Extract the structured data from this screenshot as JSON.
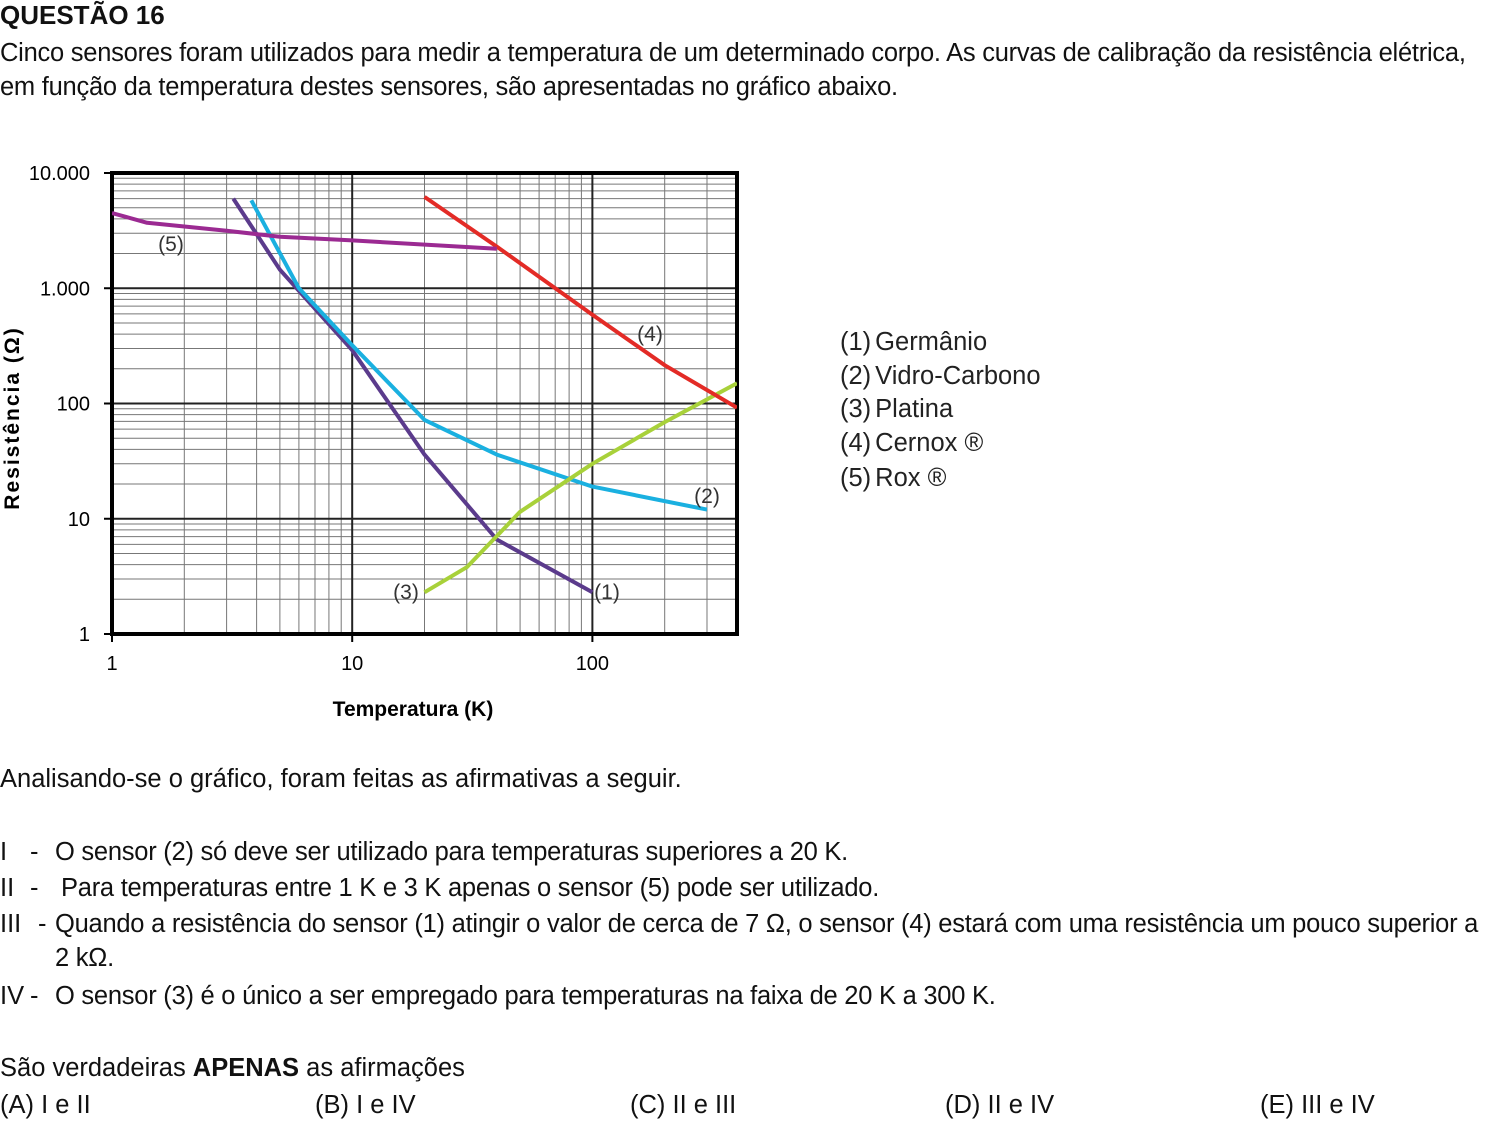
{
  "header": {
    "title": "QUESTÃO 16"
  },
  "intro": "Cinco sensores foram utilizados para medir a temperatura de um determinado corpo. As curvas de calibração da resistência elétrica, em função da temperatura destes sensores, são apresentadas no gráfico abaixo.",
  "chart_data": {
    "type": "line",
    "xlabel": "Temperatura (K)",
    "ylabel": "Resistência (Ω)",
    "log_x": true,
    "log_y": true,
    "grid": true,
    "minor_grid": true,
    "xlim": [
      1,
      400
    ],
    "ylim": [
      1,
      10000
    ],
    "xticks": [
      1,
      10,
      100
    ],
    "yticks": [
      1,
      10,
      100,
      {
        "value": 1000,
        "label": "1.000"
      },
      {
        "value": 10000,
        "label": "10.000"
      }
    ],
    "series": [
      {
        "label": "(1)",
        "name": "Germânio",
        "color": "#5b3b8c",
        "x": [
          3.2,
          5,
          10,
          20,
          40,
          100
        ],
        "values": [
          6000,
          1450,
          290,
          36,
          6.6,
          2.3
        ]
      },
      {
        "label": "(2)",
        "name": "Vidro-Carbono",
        "color": "#1ab0e0",
        "x": [
          3.8,
          6,
          10,
          20,
          40,
          100,
          300
        ],
        "values": [
          5800,
          1000,
          320,
          72,
          36,
          19,
          12
        ]
      },
      {
        "label": "(3)",
        "name": "Platina",
        "color": "#a8d13a",
        "x": [
          20,
          30,
          50,
          100,
          200,
          400
        ],
        "values": [
          2.3,
          3.8,
          11.5,
          30,
          69,
          150
        ]
      },
      {
        "label": "(4)",
        "name": "Cernox ®",
        "color": "#e32b26",
        "x": [
          20,
          40,
          100,
          200,
          400
        ],
        "values": [
          6200,
          2300,
          590,
          215,
          92
        ]
      },
      {
        "label": "(5)",
        "name": "Rox ®",
        "color": "#9b2a92",
        "x": [
          1,
          1.4,
          3,
          5,
          10,
          40
        ],
        "values": [
          4500,
          3700,
          3150,
          2800,
          2600,
          2200
        ]
      }
    ]
  },
  "analysis": "Analisando-se o gráfico, foram feitas as afirmativas a seguir.",
  "statements": [
    {
      "numeral": "I",
      "separator": "-",
      "text": "O sensor (2) só deve ser utilizado para temperaturas superiores a 20 K."
    },
    {
      "numeral": "II",
      "separator": "-",
      "text": "Para temperaturas entre 1 K e 3 K apenas o sensor (5) pode ser utilizado."
    },
    {
      "numeral": "III",
      "separator": "-",
      "text": "Quando a resistência do sensor (1) atingir o valor de cerca de 7 Ω, o sensor (4) estará com uma resistência um pouco superior a 2 kΩ."
    },
    {
      "numeral": "IV",
      "separator": "-",
      "text": "O sensor (3) é o único a ser empregado para temperaturas na faixa de 20 K a 300 K."
    }
  ],
  "question": {
    "before": "São verdadeiras",
    "bold": "APENAS",
    "after": "as afirmações"
  },
  "options": [
    "(A) I e II",
    "(B) I e IV",
    "(C) II e III",
    "(D) II e IV",
    "(E) III e IV"
  ]
}
